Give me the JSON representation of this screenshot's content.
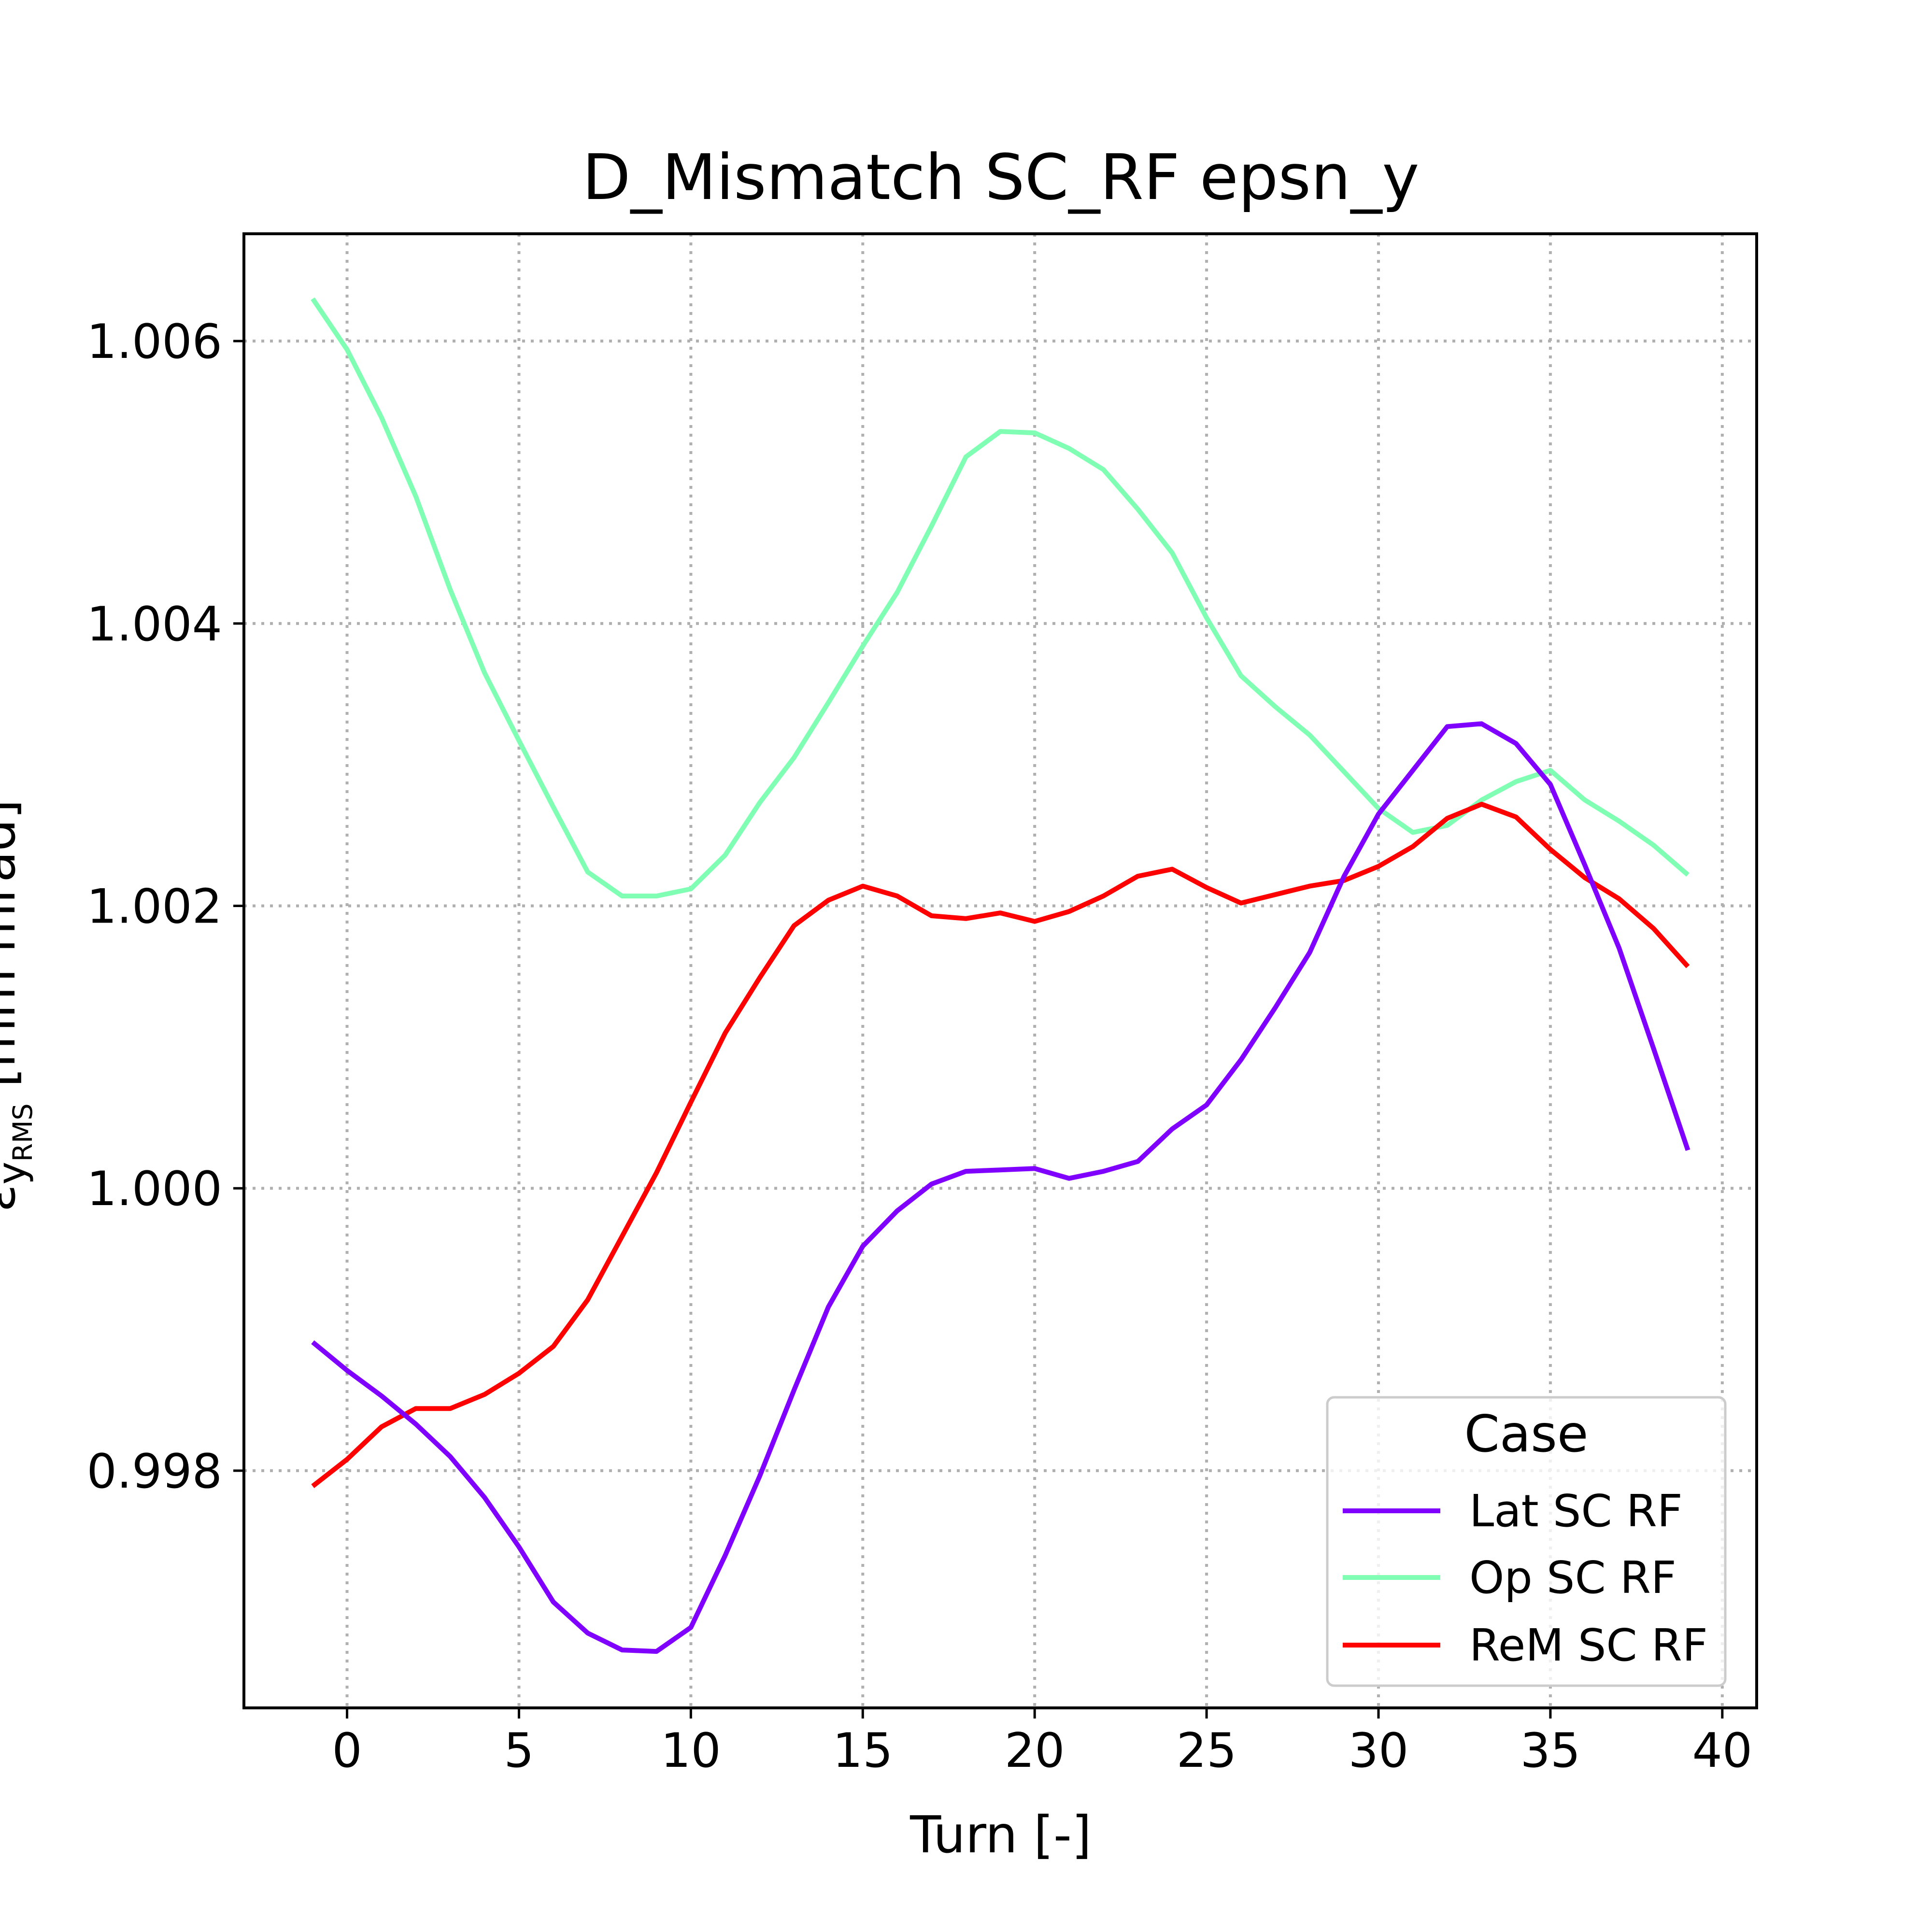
{
  "chart_data": {
    "type": "line",
    "title": "D_Mismatch SC_RF epsn_y",
    "xlabel": "Turn [-]",
    "ylabel": "εy_RMS [mm mrad]",
    "ylabel_main": "ε",
    "ylabel_sub": "y",
    "ylabel_subsub": "RMS",
    "ylabel_unit": " [mm mrad]",
    "xlim": [
      -3,
      41
    ],
    "ylim": [
      0.99632,
      1.00676
    ],
    "xticks": [
      0,
      5,
      10,
      15,
      20,
      25,
      30,
      35,
      40
    ],
    "yticks": [
      0.998,
      1.0,
      1.002,
      1.004,
      1.006
    ],
    "ytick_labels": [
      "0.998",
      "1.000",
      "1.002",
      "1.004",
      "1.006"
    ],
    "grid": true,
    "legend": {
      "title": "Case",
      "placement": "lower right"
    },
    "x": [
      -1,
      0,
      1,
      2,
      3,
      4,
      5,
      6,
      7,
      8,
      9,
      10,
      11,
      12,
      13,
      14,
      15,
      16,
      17,
      18,
      19,
      20,
      21,
      22,
      23,
      24,
      25,
      26,
      27,
      28,
      29,
      30,
      31,
      32,
      33,
      34,
      35,
      36,
      37,
      38,
      39
    ],
    "series": [
      {
        "name": "Lat SC RF",
        "color": "#8000ff",
        "values": [
          0.99891,
          0.99871,
          0.99853,
          0.99833,
          0.9981,
          0.99781,
          0.99746,
          0.99707,
          0.99685,
          0.99673,
          0.99672,
          0.99689,
          0.9974,
          0.99796,
          0.99857,
          0.99916,
          0.99959,
          0.99984,
          1.00003,
          1.00012,
          1.00013,
          1.00014,
          1.00007,
          1.00012,
          1.00019,
          1.00042,
          1.00059,
          1.00091,
          1.00128,
          1.00167,
          1.00221,
          1.00265,
          1.00296,
          1.00327,
          1.00329,
          1.00315,
          1.00286,
          1.00229,
          1.0017,
          1.00099,
          1.00027
        ]
      },
      {
        "name": "Op SC RF",
        "color": "#80ffb4",
        "values": [
          1.0063,
          1.00594,
          1.00546,
          1.0049,
          1.00424,
          1.00365,
          1.00317,
          1.0027,
          1.00224,
          1.00207,
          1.00207,
          1.00212,
          1.00236,
          1.00273,
          1.00305,
          1.00344,
          1.00384,
          1.00422,
          1.00469,
          1.00518,
          1.00536,
          1.00535,
          1.00524,
          1.00509,
          1.00481,
          1.0045,
          1.00404,
          1.00363,
          1.00341,
          1.00321,
          1.00295,
          1.00269,
          1.00252,
          1.00257,
          1.00275,
          1.00288,
          1.00296,
          1.00275,
          1.0026,
          1.00243,
          1.00222
        ]
      },
      {
        "name": "ReM SC RF",
        "color": "#ff0000",
        "values": [
          0.99789,
          0.99808,
          0.99831,
          0.99844,
          0.99844,
          0.99854,
          0.99869,
          0.99888,
          0.99921,
          0.99966,
          1.00011,
          1.00061,
          1.0011,
          1.00149,
          1.00186,
          1.00204,
          1.00214,
          1.00207,
          1.00193,
          1.00191,
          1.00195,
          1.00189,
          1.00196,
          1.00207,
          1.00221,
          1.00226,
          1.00213,
          1.00202,
          1.00208,
          1.00214,
          1.00218,
          1.00228,
          1.00242,
          1.00262,
          1.00272,
          1.00263,
          1.0024,
          1.0022,
          1.00205,
          1.00184,
          1.00157
        ]
      }
    ]
  }
}
